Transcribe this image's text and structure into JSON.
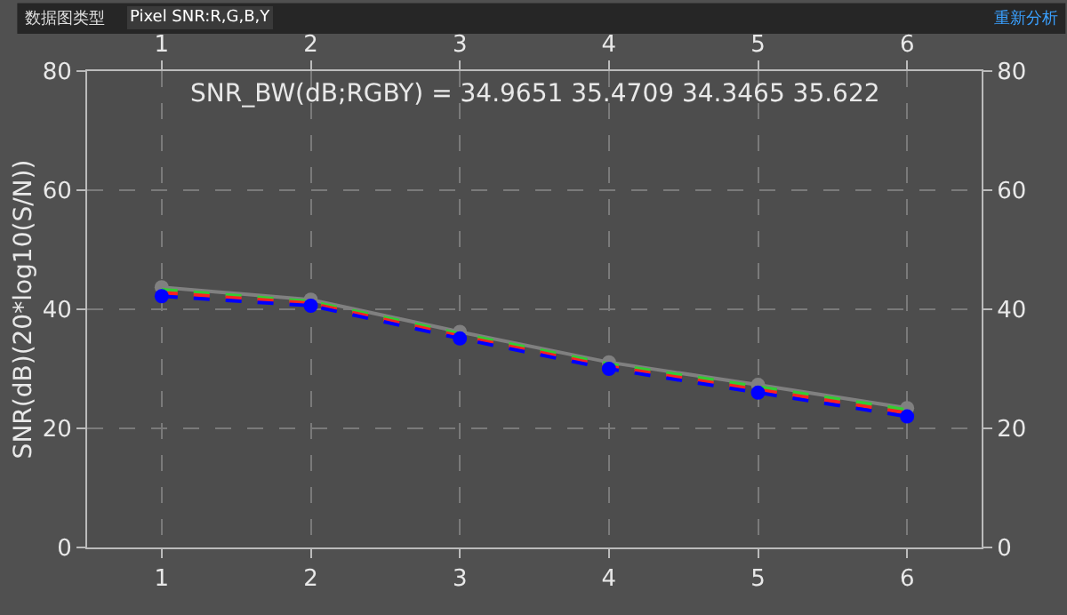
{
  "chart_data": {
    "type": "line",
    "title": "SNR_BW(dB;RGBY) = 34.9651 35.4709 34.3465 35.622",
    "ylabel": "SNR(dB)(20*log10(S/N))",
    "annotations": [
      "数据图类型",
      "Pixel SNR:R,G,B,Y",
      "重新分析"
    ],
    "x": [
      1,
      2,
      3,
      4,
      5,
      6
    ],
    "series": [
      {
        "color": "#808080",
        "values": [
          43.7,
          41.6,
          36.2,
          31.1,
          27.3,
          23.4
        ],
        "marker": "circle",
        "line_style": "solid"
      },
      {
        "color": "#33cc33",
        "values": [
          43.3,
          41.3,
          35.9,
          30.8,
          27.0,
          23.1
        ],
        "marker": "none",
        "line_style": "dashed"
      },
      {
        "color": "#ff2020",
        "values": [
          42.8,
          41.0,
          35.5,
          30.4,
          26.5,
          22.6
        ],
        "marker": "none",
        "line_style": "dashed"
      },
      {
        "color": "#0000ff",
        "values": [
          42.2,
          40.6,
          35.1,
          30.0,
          26.0,
          22.0
        ],
        "marker": "circle",
        "line_style": "dashed"
      }
    ],
    "xlim": [
      0.5,
      6.5
    ],
    "xticks": [
      1,
      2,
      3,
      4,
      5,
      6
    ],
    "x2lim": [
      0.5,
      6.5
    ],
    "x2ticks": [
      1,
      2,
      3,
      4,
      5,
      6
    ],
    "ylim": [
      0,
      80
    ],
    "yticks": [
      0,
      20,
      40,
      60,
      80
    ],
    "y2lim": [
      0,
      80
    ],
    "y2ticks": [
      0,
      20,
      40,
      60,
      80
    ],
    "grid": true
  }
}
